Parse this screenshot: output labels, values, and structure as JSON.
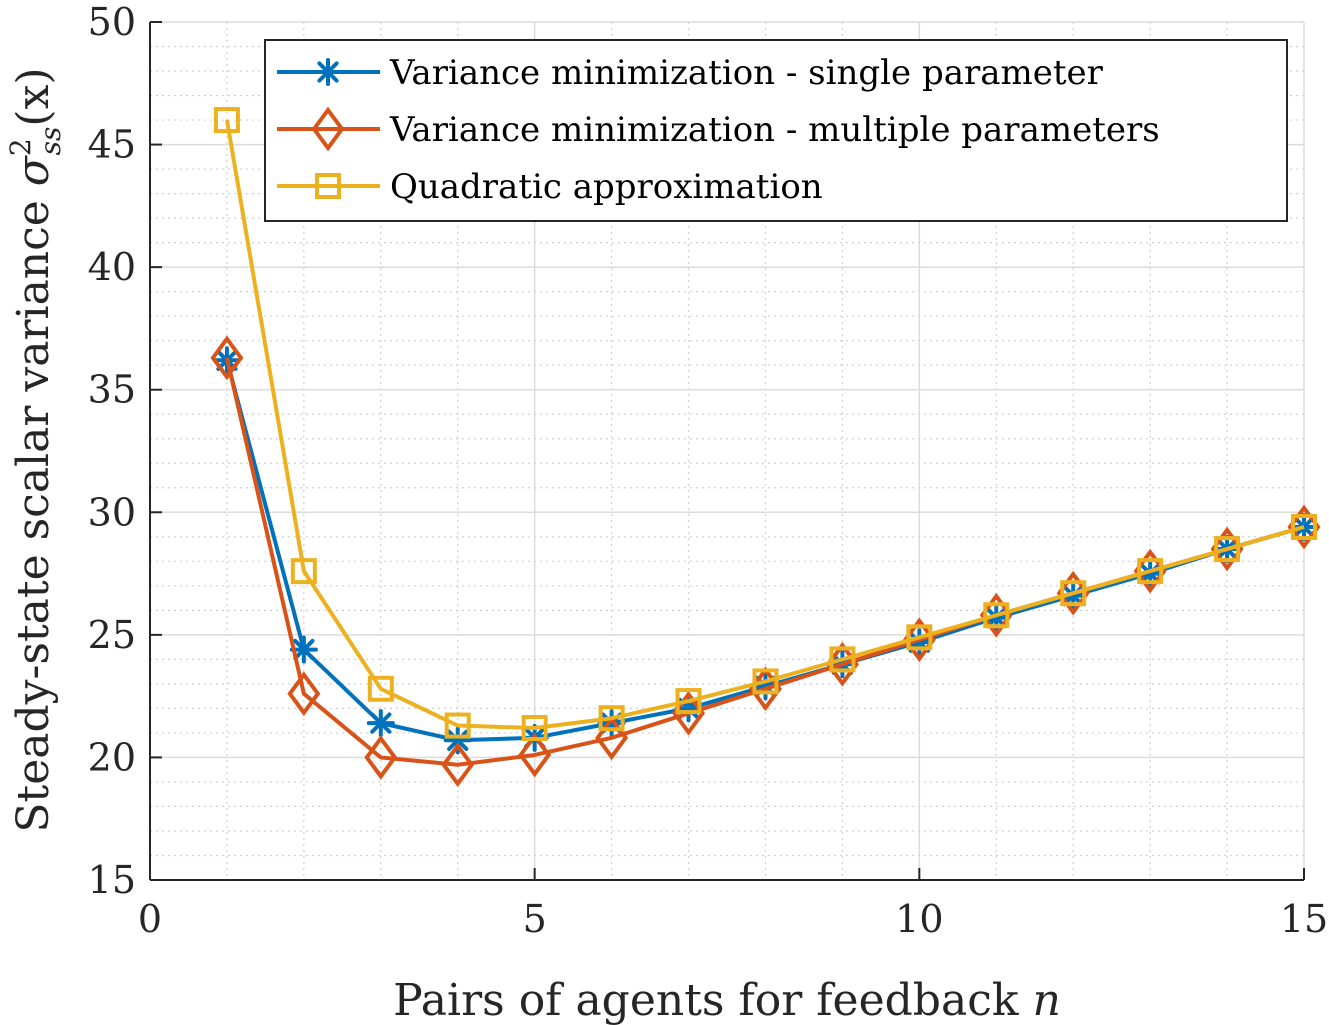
{
  "chart_data": {
    "type": "line",
    "title": "",
    "xlabel": "Pairs of agents for feedback n",
    "ylabel": "Steady-state scalar variance σ²ss(x)",
    "ylabel_main": "Steady-state scalar variance ",
    "ylabel_symbol": "σ",
    "ylabel_sup": "2",
    "ylabel_sub": "ss",
    "ylabel_arg": "(x)",
    "xlabel_main": "Pairs of agents for feedback ",
    "xlabel_var": "n",
    "xlim": [
      0,
      15
    ],
    "ylim": [
      15,
      50
    ],
    "xticks": [
      0,
      5,
      10,
      15
    ],
    "yticks": [
      15,
      20,
      25,
      30,
      35,
      40,
      45,
      50
    ],
    "grid": true,
    "minor_grid": true,
    "legend_position": "top-right",
    "x": [
      1,
      2,
      3,
      4,
      5,
      6,
      7,
      8,
      9,
      10,
      11,
      12,
      13,
      14,
      15
    ],
    "series": [
      {
        "name": "Variance minimization - single parameter",
        "color": "#0072BD",
        "marker": "asterisk",
        "values": [
          36.2,
          24.4,
          21.4,
          20.7,
          20.8,
          21.4,
          22.0,
          22.9,
          23.8,
          24.7,
          25.7,
          26.6,
          27.5,
          28.5,
          29.4
        ]
      },
      {
        "name": "Variance minimization - multiple parameters",
        "color": "#D95319",
        "marker": "diamond",
        "values": [
          36.3,
          22.6,
          20.0,
          19.7,
          20.1,
          20.8,
          21.8,
          22.8,
          23.8,
          24.8,
          25.8,
          26.7,
          27.6,
          28.5,
          29.4
        ]
      },
      {
        "name": "Quadratic approximation",
        "color": "#EDB120",
        "marker": "square",
        "values": [
          46.0,
          27.6,
          22.8,
          21.3,
          21.2,
          21.6,
          22.3,
          23.1,
          24.0,
          24.9,
          25.8,
          26.7,
          27.6,
          28.5,
          29.4
        ]
      }
    ]
  }
}
